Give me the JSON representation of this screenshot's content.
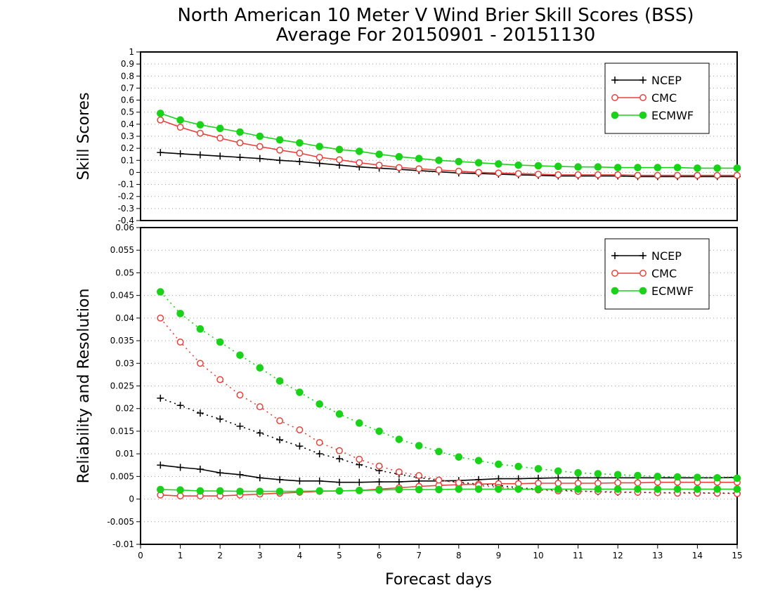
{
  "chart_data": {
    "type": "line",
    "title": "North American 10 Meter V Wind Brier Skill Scores (BSS)",
    "subtitle": "Average For 20150901 - 20151130",
    "xlabel": "Forecast days",
    "xlim": [
      0,
      15
    ],
    "x_ticks": [
      "0",
      "1",
      "2",
      "3",
      "4",
      "5",
      "6",
      "7",
      "8",
      "9",
      "10",
      "11",
      "12",
      "13",
      "14",
      "15"
    ],
    "x": [
      0.5,
      1,
      1.5,
      2,
      2.5,
      3,
      3.5,
      4,
      4.5,
      5,
      5.5,
      6,
      6.5,
      7,
      7.5,
      8,
      8.5,
      9,
      9.5,
      10,
      10.5,
      11,
      11.5,
      12,
      12.5,
      13,
      13.5,
      14,
      14.5,
      15
    ],
    "colors": {
      "NCEP": "#000000",
      "CMC": "#e8413c",
      "ECMWF": "#19d219"
    },
    "panels": [
      {
        "ylabel": "Skill Scores",
        "ylim": [
          -0.4,
          1
        ],
        "y_ticks": [
          "1",
          "0.9",
          "0.8",
          "0.7",
          "0.6",
          "0.5",
          "0.4",
          "0.3",
          "0.2",
          "0.1",
          "0",
          "-0.1",
          "-0.2",
          "-0.3",
          "-0.4"
        ],
        "grid": "dotted",
        "legend_position": "top-right",
        "legend": [
          "NCEP",
          "CMC",
          "ECMWF"
        ],
        "series": [
          {
            "name": "NCEP",
            "style": "solid",
            "marker": "plus",
            "values": [
              0.165,
              0.155,
              0.145,
              0.135,
              0.125,
              0.115,
              0.1,
              0.09,
              0.075,
              0.06,
              0.045,
              0.035,
              0.025,
              0.015,
              0.005,
              -0.005,
              -0.01,
              -0.015,
              -0.02,
              -0.025,
              -0.03,
              -0.03,
              -0.03,
              -0.03,
              -0.035,
              -0.035,
              -0.035,
              -0.035,
              -0.035,
              -0.035
            ]
          },
          {
            "name": "CMC",
            "style": "solid",
            "marker": "open-circle",
            "values": [
              0.435,
              0.375,
              0.325,
              0.285,
              0.245,
              0.215,
              0.185,
              0.16,
              0.125,
              0.105,
              0.08,
              0.06,
              0.04,
              0.03,
              0.02,
              0.01,
              0.0,
              -0.005,
              -0.01,
              -0.015,
              -0.02,
              -0.02,
              -0.02,
              -0.02,
              -0.025,
              -0.025,
              -0.025,
              -0.025,
              -0.025,
              -0.025
            ]
          },
          {
            "name": "ECMWF",
            "style": "solid",
            "marker": "filled-circle",
            "values": [
              0.49,
              0.435,
              0.395,
              0.365,
              0.335,
              0.3,
              0.27,
              0.245,
              0.215,
              0.19,
              0.175,
              0.15,
              0.13,
              0.115,
              0.1,
              0.09,
              0.08,
              0.07,
              0.06,
              0.055,
              0.05,
              0.045,
              0.045,
              0.04,
              0.04,
              0.04,
              0.04,
              0.035,
              0.035,
              0.035
            ]
          }
        ]
      },
      {
        "ylabel": "Reliability and Resolution",
        "ylim": [
          -0.01,
          0.06
        ],
        "y_ticks": [
          "0.06",
          "0.055",
          "0.05",
          "0.045",
          "0.04",
          "0.035",
          "0.03",
          "0.025",
          "0.02",
          "0.015",
          "0.01",
          "0.005",
          "0",
          "-0.005",
          "-0.01"
        ],
        "grid": "dotted",
        "legend_position": "top-right",
        "legend": [
          "NCEP",
          "CMC",
          "ECMWF"
        ],
        "series": [
          {
            "name": "NCEP",
            "metric": "Reliability",
            "style": "solid",
            "marker": "plus",
            "values": [
              0.0075,
              0.007,
              0.0066,
              0.0058,
              0.0054,
              0.0047,
              0.0043,
              0.004,
              0.004,
              0.0037,
              0.0037,
              0.0038,
              0.0038,
              0.004,
              0.004,
              0.0041,
              0.0043,
              0.0045,
              0.0045,
              0.0046,
              0.0047,
              0.0047,
              0.0047,
              0.0047,
              0.0047,
              0.0047,
              0.0047,
              0.0047,
              0.0047,
              0.0048
            ]
          },
          {
            "name": "NCEP",
            "metric": "Resolution",
            "style": "dotted",
            "marker": "plus",
            "values": [
              0.0223,
              0.0207,
              0.019,
              0.0177,
              0.0161,
              0.0146,
              0.0131,
              0.0117,
              0.01,
              0.0089,
              0.0076,
              0.0063,
              0.0055,
              0.0047,
              0.0042,
              0.0037,
              0.0033,
              0.003,
              0.0025,
              0.0022,
              0.002,
              0.0018,
              0.0016,
              0.0015,
              0.0015,
              0.0014,
              0.0014,
              0.0014,
              0.0013,
              0.0013
            ]
          },
          {
            "name": "CMC",
            "metric": "Reliability",
            "style": "solid",
            "marker": "open-circle",
            "values": [
              0.0009,
              0.0007,
              0.0007,
              0.0007,
              0.0009,
              0.0011,
              0.0013,
              0.0015,
              0.0017,
              0.0018,
              0.0019,
              0.0022,
              0.0025,
              0.0028,
              0.003,
              0.0032,
              0.0033,
              0.0034,
              0.0034,
              0.0035,
              0.0035,
              0.0035,
              0.0035,
              0.0036,
              0.0036,
              0.0037,
              0.0037,
              0.0037,
              0.0037,
              0.0037
            ]
          },
          {
            "name": "CMC",
            "metric": "Resolution",
            "style": "dotted",
            "marker": "open-circle",
            "values": [
              0.04,
              0.0347,
              0.03,
              0.0264,
              0.023,
              0.0204,
              0.0173,
              0.0153,
              0.0125,
              0.0107,
              0.0088,
              0.0073,
              0.006,
              0.0052,
              0.0042,
              0.0036,
              0.003,
              0.0026,
              0.0022,
              0.002,
              0.0018,
              0.0017,
              0.0017,
              0.0016,
              0.0015,
              0.0014,
              0.0013,
              0.0013,
              0.0013,
              0.0012
            ]
          },
          {
            "name": "ECMWF",
            "metric": "Reliability",
            "style": "solid",
            "marker": "filled-circle",
            "values": [
              0.0021,
              0.002,
              0.0018,
              0.0018,
              0.0017,
              0.0017,
              0.0017,
              0.0017,
              0.0018,
              0.0018,
              0.0019,
              0.002,
              0.0021,
              0.0021,
              0.0021,
              0.0022,
              0.0022,
              0.0022,
              0.0022,
              0.0022,
              0.0022,
              0.0022,
              0.0022,
              0.0022,
              0.0022,
              0.0022,
              0.0022,
              0.0022,
              0.0022,
              0.0022
            ]
          },
          {
            "name": "ECMWF",
            "metric": "Resolution",
            "style": "dotted",
            "marker": "filled-circle",
            "values": [
              0.0458,
              0.041,
              0.0376,
              0.0347,
              0.0318,
              0.029,
              0.0261,
              0.0236,
              0.021,
              0.0188,
              0.0168,
              0.015,
              0.0132,
              0.0118,
              0.0105,
              0.0093,
              0.0085,
              0.0077,
              0.0072,
              0.0067,
              0.0062,
              0.0058,
              0.0056,
              0.0054,
              0.0052,
              0.005,
              0.0049,
              0.0048,
              0.0047,
              0.0046
            ]
          }
        ]
      }
    ]
  }
}
